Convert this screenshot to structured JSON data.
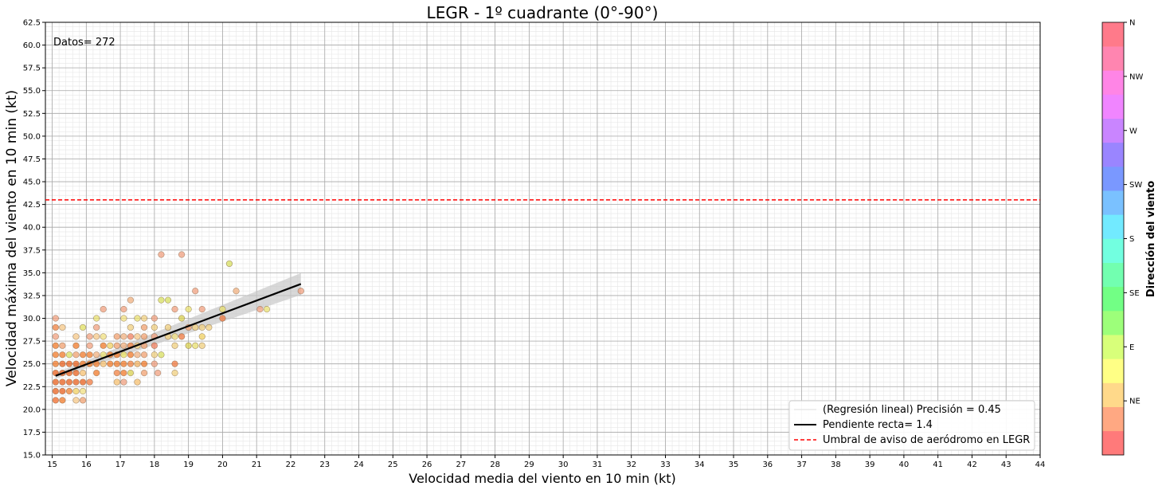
{
  "chart_data": {
    "type": "scatter",
    "title": "LEGR - 1º cuadrante (0°-90°)",
    "xlabel": "Velocidad media del viento en 10 min (kt)",
    "ylabel": "Velocidad máxima del viento en 10 min (kt)",
    "xlim": [
      14.8,
      44
    ],
    "ylim": [
      15,
      62.5
    ],
    "x_ticks": [
      15,
      16,
      17,
      18,
      19,
      20,
      21,
      22,
      23,
      24,
      25,
      26,
      27,
      28,
      29,
      30,
      31,
      32,
      33,
      34,
      35,
      36,
      37,
      38,
      39,
      40,
      41,
      42,
      43,
      44
    ],
    "y_ticks": [
      15.0,
      17.5,
      20.0,
      22.5,
      25.0,
      27.5,
      30.0,
      32.5,
      35.0,
      37.5,
      40.0,
      42.5,
      45.0,
      47.5,
      50.0,
      52.5,
      55.0,
      57.5,
      60.0,
      62.5
    ],
    "grid": true,
    "annotation": "Datos= 272",
    "threshold": {
      "y": 43,
      "color": "#ff0000",
      "style": "dashed"
    },
    "regression": {
      "x_range": [
        15.1,
        22.3
      ],
      "intercept": 2.55,
      "slope": 1.4,
      "band_halfwidth_start": 0.3,
      "band_halfwidth_end": 1.2
    },
    "legend": {
      "position": "lower-right",
      "entries": [
        {
          "label": "(Regresión lineal) Precisión = 0.45",
          "style": "faint-line"
        },
        {
          "label": "Pendiente recta= 1.4",
          "style": "solid-black"
        },
        {
          "label": "Umbral de aviso de aeródromo en LEGR",
          "style": "dashed-red"
        }
      ]
    },
    "colorbar": {
      "label": "Dirección del viento",
      "ticks": [
        "N",
        "NW",
        "W",
        "SW",
        "S",
        "SE",
        "E",
        "NE"
      ],
      "colors": [
        "#ff7a7a",
        "#ffa882",
        "#ffd98a",
        "#ffff85",
        "#d8ff7a",
        "#9dff7a",
        "#72ff85",
        "#72ffb0",
        "#72ffe0",
        "#72eaff",
        "#7ac1ff",
        "#7a98ff",
        "#9a85ff",
        "#c985ff",
        "#f085ff",
        "#ff85e6",
        "#ff85b0",
        "#ff7a8a"
      ]
    },
    "points": [
      [
        15.1,
        21,
        "#f06a2a"
      ],
      [
        15.3,
        21,
        "#f07a2a"
      ],
      [
        15.7,
        21,
        "#f5c888"
      ],
      [
        15.9,
        21,
        "#f0a070"
      ],
      [
        15.1,
        22,
        "#e8601e"
      ],
      [
        15.3,
        22,
        "#e8601e"
      ],
      [
        15.5,
        22,
        "#f08030"
      ],
      [
        15.7,
        22,
        "#f0d060"
      ],
      [
        15.9,
        22,
        "#f0e080"
      ],
      [
        15.1,
        23,
        "#e8601e"
      ],
      [
        15.3,
        23,
        "#e8601e"
      ],
      [
        15.5,
        23,
        "#e8601e"
      ],
      [
        15.7,
        23,
        "#e8601e"
      ],
      [
        15.9,
        23,
        "#e8601e"
      ],
      [
        16.1,
        23,
        "#f07a40"
      ],
      [
        16.9,
        23,
        "#f5c070"
      ],
      [
        17.1,
        23,
        "#f0a080"
      ],
      [
        17.5,
        23,
        "#f5c070"
      ],
      [
        15.1,
        24,
        "#e8601e"
      ],
      [
        15.3,
        24,
        "#e8601e"
      ],
      [
        15.5,
        24,
        "#e8601e"
      ],
      [
        15.7,
        24,
        "#e8601e"
      ],
      [
        15.9,
        24,
        "#f5c070"
      ],
      [
        16.3,
        24,
        "#f07a2a"
      ],
      [
        16.9,
        24,
        "#f08040"
      ],
      [
        17.1,
        24,
        "#f07a2a"
      ],
      [
        17.3,
        24,
        "#d8d050"
      ],
      [
        17.7,
        24,
        "#f0a070"
      ],
      [
        18.1,
        24,
        "#f0a080"
      ],
      [
        18.6,
        24,
        "#f0d080"
      ],
      [
        15.1,
        25,
        "#f07a2a"
      ],
      [
        15.3,
        25,
        "#e8601e"
      ],
      [
        15.5,
        25,
        "#e8601e"
      ],
      [
        15.7,
        25,
        "#e8601e"
      ],
      [
        15.9,
        25,
        "#f07a2a"
      ],
      [
        16.1,
        25,
        "#f07a2a"
      ],
      [
        16.3,
        25,
        "#f07a2a"
      ],
      [
        16.5,
        25,
        "#f5c070"
      ],
      [
        16.7,
        25,
        "#f07a2a"
      ],
      [
        16.9,
        25,
        "#f07a2a"
      ],
      [
        17.1,
        25,
        "#f07a2a"
      ],
      [
        17.3,
        25,
        "#f08040"
      ],
      [
        17.5,
        25,
        "#f0b060"
      ],
      [
        17.7,
        25,
        "#f07a2a"
      ],
      [
        18.0,
        25,
        "#f0a080"
      ],
      [
        18.6,
        25,
        "#f07a40"
      ],
      [
        15.1,
        26,
        "#f07a2a"
      ],
      [
        15.3,
        26,
        "#f07a2a"
      ],
      [
        15.5,
        26,
        "#d8e060"
      ],
      [
        15.7,
        26,
        "#f0a070"
      ],
      [
        15.9,
        26,
        "#f07a2a"
      ],
      [
        16.1,
        26,
        "#f07a2a"
      ],
      [
        16.3,
        26,
        "#f0b080"
      ],
      [
        16.5,
        26,
        "#e8e070"
      ],
      [
        16.7,
        26,
        "#f07a2a"
      ],
      [
        16.9,
        26,
        "#f07a2a"
      ],
      [
        17.1,
        26,
        "#e8e060"
      ],
      [
        17.3,
        26,
        "#f07a2a"
      ],
      [
        17.5,
        26,
        "#f0b080"
      ],
      [
        17.7,
        26,
        "#f0a070"
      ],
      [
        18.0,
        26,
        "#f0d080"
      ],
      [
        18.2,
        26,
        "#d8e060"
      ],
      [
        15.1,
        27,
        "#f07a2a"
      ],
      [
        15.3,
        27,
        "#f0a070"
      ],
      [
        15.7,
        27,
        "#f07a2a"
      ],
      [
        16.1,
        27,
        "#f0a080"
      ],
      [
        16.5,
        27,
        "#f07a2a"
      ],
      [
        16.7,
        27,
        "#f0d060"
      ],
      [
        16.9,
        27,
        "#f0a070"
      ],
      [
        17.1,
        27,
        "#f0b080"
      ],
      [
        17.3,
        27,
        "#f08040"
      ],
      [
        17.5,
        27,
        "#f0d080"
      ],
      [
        17.7,
        27,
        "#f0a070"
      ],
      [
        18.0,
        27,
        "#f08060"
      ],
      [
        18.6,
        27,
        "#f0d080"
      ],
      [
        19.0,
        27,
        "#d8d050"
      ],
      [
        19.2,
        27,
        "#e8e070"
      ],
      [
        19.4,
        27,
        "#f0d080"
      ],
      [
        15.1,
        28,
        "#f0a080"
      ],
      [
        15.7,
        28,
        "#f5c888"
      ],
      [
        16.1,
        28,
        "#f0a080"
      ],
      [
        16.3,
        28,
        "#f5c888"
      ],
      [
        16.5,
        28,
        "#f0e080"
      ],
      [
        16.9,
        28,
        "#f0a070"
      ],
      [
        17.1,
        28,
        "#f0b080"
      ],
      [
        17.3,
        28,
        "#f08060"
      ],
      [
        17.5,
        28,
        "#f5c888"
      ],
      [
        17.7,
        28,
        "#f0a070"
      ],
      [
        18.0,
        28,
        "#f0a080"
      ],
      [
        18.4,
        28,
        "#f0d080"
      ],
      [
        18.6,
        28,
        "#f0e080"
      ],
      [
        18.8,
        28,
        "#f07a40"
      ],
      [
        19.4,
        28,
        "#f0d060"
      ],
      [
        15.1,
        29,
        "#f08040"
      ],
      [
        15.3,
        29,
        "#f5c888"
      ],
      [
        15.9,
        29,
        "#e0e060"
      ],
      [
        16.3,
        29,
        "#f0a080"
      ],
      [
        17.3,
        29,
        "#f0d080"
      ],
      [
        17.7,
        29,
        "#f0a070"
      ],
      [
        18.0,
        29,
        "#f0d080"
      ],
      [
        18.4,
        29,
        "#f0d080"
      ],
      [
        19.0,
        29,
        "#f0a070"
      ],
      [
        19.2,
        29,
        "#f0d080"
      ],
      [
        19.4,
        29,
        "#f0d080"
      ],
      [
        19.6,
        29,
        "#f0d080"
      ],
      [
        15.1,
        30,
        "#f0a080"
      ],
      [
        16.3,
        30,
        "#e8e070"
      ],
      [
        17.1,
        30,
        "#f0e080"
      ],
      [
        17.5,
        30,
        "#e8e070"
      ],
      [
        17.7,
        30,
        "#f0d080"
      ],
      [
        18.0,
        30,
        "#f0a080"
      ],
      [
        18.8,
        30,
        "#d8d050"
      ],
      [
        20.0,
        30,
        "#f07a40"
      ],
      [
        16.5,
        31,
        "#f0a080"
      ],
      [
        17.1,
        31,
        "#f0a080"
      ],
      [
        18.6,
        31,
        "#f0a080"
      ],
      [
        19.0,
        31,
        "#e8e070"
      ],
      [
        19.4,
        31,
        "#f0a080"
      ],
      [
        20.0,
        31,
        "#e8e070"
      ],
      [
        21.1,
        31,
        "#f0a080"
      ],
      [
        21.3,
        31,
        "#e8e070"
      ],
      [
        17.3,
        32,
        "#f0b080"
      ],
      [
        18.2,
        32,
        "#d8e060"
      ],
      [
        18.4,
        32,
        "#d8e060"
      ],
      [
        19.2,
        33,
        "#f0a080"
      ],
      [
        20.4,
        33,
        "#f0b080"
      ],
      [
        22.3,
        33,
        "#f0a080"
      ],
      [
        20.2,
        36,
        "#d8e060"
      ],
      [
        18.2,
        37,
        "#f0a080"
      ],
      [
        18.8,
        37,
        "#f0a080"
      ]
    ]
  }
}
